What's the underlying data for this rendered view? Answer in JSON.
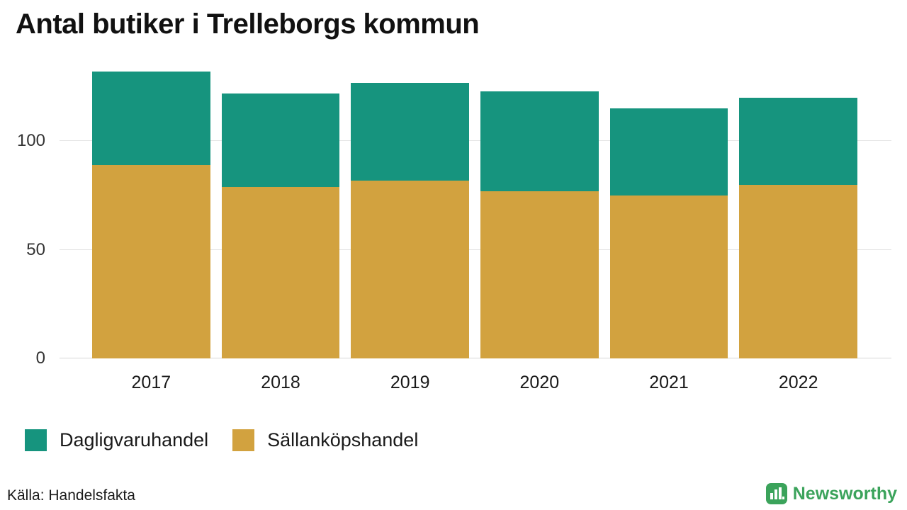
{
  "title": "Antal butiker i Trelleborgs kommun",
  "source": "Källa: Handelsfakta",
  "brand": {
    "name": "Newsworthy",
    "color": "#3ba35b"
  },
  "chart_data": {
    "type": "bar",
    "stacked": true,
    "title": "Antal butiker i Trelleborgs kommun",
    "xlabel": "",
    "ylabel": "",
    "categories": [
      "2017",
      "2018",
      "2019",
      "2020",
      "2021",
      "2022"
    ],
    "series": [
      {
        "name": "Sällanköpshandel",
        "color": "#d2a23f",
        "values": [
          89,
          79,
          82,
          77,
          75,
          80
        ]
      },
      {
        "name": "Dagligvaruhandel",
        "color": "#16947e",
        "values": [
          43,
          43,
          45,
          46,
          40,
          40
        ]
      }
    ],
    "totals": [
      132,
      122,
      127,
      123,
      115,
      120
    ],
    "yticks": [
      0,
      50,
      100
    ],
    "ylim": [
      0,
      137
    ],
    "grid": true,
    "legend_position": "bottom",
    "legend": [
      {
        "label": "Dagligvaruhandel",
        "color": "#16947e"
      },
      {
        "label": "Sällanköpshandel",
        "color": "#d2a23f"
      }
    ]
  }
}
